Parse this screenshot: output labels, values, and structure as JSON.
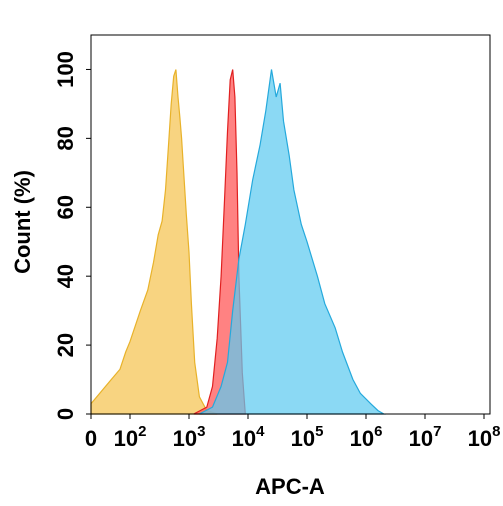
{
  "chart_data": {
    "type": "area",
    "xlabel": "APC-A",
    "ylabel": "Count (%)",
    "x_scale": "biexponential-log",
    "xlim": [
      0,
      100000000
    ],
    "ylim": [
      0,
      110
    ],
    "grid": false,
    "x_ticks": [
      {
        "base": "0",
        "exp": ""
      },
      {
        "base": "10",
        "exp": "2"
      },
      {
        "base": "10",
        "exp": "3"
      },
      {
        "base": "10",
        "exp": "4"
      },
      {
        "base": "10",
        "exp": "5"
      },
      {
        "base": "10",
        "exp": "6"
      },
      {
        "base": "10",
        "exp": "7"
      },
      {
        "base": "10",
        "exp": "8"
      }
    ],
    "y_ticks": [
      "0",
      "20",
      "40",
      "60",
      "80",
      "100"
    ],
    "series": [
      {
        "color": "#f5c451",
        "stroke": "#e8b22a",
        "x": [
          0,
          10,
          30,
          60,
          100,
          150,
          200,
          250,
          300,
          350,
          400,
          450,
          500,
          550,
          600,
          650,
          700,
          750,
          800,
          900,
          1000,
          1100,
          1250,
          1500,
          2000,
          3000
        ],
        "y": [
          3,
          10,
          13,
          18,
          21,
          30,
          36,
          44,
          52,
          56,
          65,
          78,
          90,
          98,
          100,
          92,
          86,
          80,
          72,
          58,
          47,
          32,
          15,
          5,
          1,
          0
        ]
      },
      {
        "color": "#ff5252",
        "stroke": "#e02020",
        "x": [
          1200,
          2000,
          2500,
          3000,
          3500,
          4000,
          4500,
          5000,
          5500,
          6000,
          6500,
          7000,
          8000,
          9000
        ],
        "y": [
          0,
          2,
          8,
          22,
          40,
          62,
          82,
          97,
          100,
          92,
          70,
          40,
          12,
          0
        ]
      },
      {
        "color": "#5ecbf0",
        "stroke": "#25a9dc",
        "x": [
          1500,
          2500,
          3500,
          4500,
          5500,
          7000,
          9000,
          12000,
          16000,
          20000,
          25000,
          30000,
          35000,
          40000,
          50000,
          60000,
          80000,
          100000,
          150000,
          200000,
          300000,
          400000,
          600000,
          800000,
          1200000,
          1600000,
          2000000
        ],
        "y": [
          0,
          2,
          8,
          15,
          30,
          45,
          55,
          68,
          78,
          88,
          100,
          92,
          96,
          85,
          75,
          65,
          55,
          50,
          40,
          32,
          25,
          18,
          10,
          6,
          3,
          1,
          0
        ]
      }
    ]
  }
}
